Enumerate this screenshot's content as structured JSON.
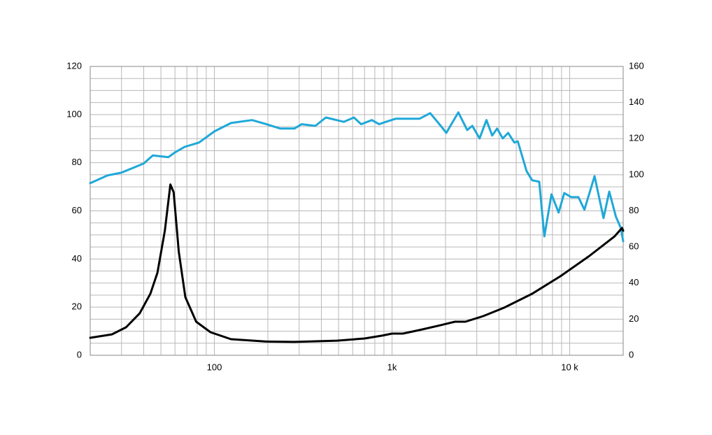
{
  "chart_data": {
    "type": "line",
    "log_x": true,
    "grid": true,
    "xlim": [
      20,
      20000
    ],
    "ylim": [
      0,
      120
    ],
    "y2lim": [
      0,
      160
    ],
    "xticks": [
      100,
      {
        "value": 1000,
        "label": "1k"
      },
      {
        "value": 10000,
        "label": "10 k"
      }
    ],
    "yticks": [
      0,
      20,
      40,
      60,
      80,
      100,
      120
    ],
    "y2ticks": [
      0,
      20,
      40,
      60,
      80,
      100,
      120,
      140,
      160
    ],
    "xgrid": [
      20,
      30,
      40,
      50,
      60,
      70,
      80,
      90,
      100,
      200,
      300,
      400,
      500,
      600,
      700,
      800,
      900,
      1000,
      2000,
      3000,
      4000,
      5000,
      6000,
      7000,
      8000,
      9000,
      10000,
      20000
    ],
    "ygrid": [
      0,
      5,
      10,
      15,
      20,
      25,
      30,
      35,
      40,
      45,
      50,
      55,
      60,
      65,
      70,
      75,
      80,
      85,
      90,
      95,
      100,
      105,
      110,
      115,
      120
    ],
    "series": [
      {
        "color": "#1fa8d8",
        "x": [
          20,
          25,
          30,
          35,
          40,
          45,
          55,
          60,
          68,
          82,
          100,
          124,
          163,
          196,
          235,
          282,
          310,
          370,
          424,
          535,
          610,
          670,
          770,
          845,
          925,
          1050,
          1200,
          1430,
          1640,
          1880,
          2020,
          2360,
          2650,
          2830,
          3110,
          3400,
          3660,
          3900,
          4200,
          4500,
          4880,
          5100,
          5720,
          6150,
          6740,
          7200,
          7900,
          8660,
          9320,
          10200,
          11200,
          12100,
          13800,
          15500,
          16700,
          18200,
          19400,
          20000
        ],
        "values": [
          71.5,
          74.7,
          75.9,
          77.9,
          79.7,
          83,
          82.3,
          84.3,
          86.6,
          88.4,
          93,
          96.5,
          97.7,
          96,
          94.2,
          94.2,
          96,
          95.3,
          98.8,
          97,
          98.8,
          96,
          97.7,
          96,
          97,
          98.3,
          98.3,
          98.3,
          100.6,
          95.3,
          92.4,
          100.9,
          93.6,
          95.3,
          90.1,
          97.7,
          91.3,
          94.2,
          90.1,
          92.4,
          88.4,
          88.9,
          76.5,
          72.7,
          72.1,
          49.4,
          66.9,
          59.3,
          67.4,
          65.7,
          65.7,
          60.5,
          74.4,
          57,
          68,
          57.6,
          52.9,
          47.4
        ]
      },
      {
        "color": "#000000",
        "axis": "y2",
        "x": [
          20,
          26.5,
          31.8,
          38,
          43.6,
          47.8,
          52.6,
          56.5,
          59,
          63,
          68.6,
          79,
          95,
          124,
          196,
          282,
          490,
          700,
          880,
          1000,
          1150,
          1430,
          1880,
          2260,
          2590,
          3260,
          4280,
          6150,
          8880,
          12900,
          17900,
          19700,
          20000
        ],
        "values": [
          9.7,
          11.6,
          15.5,
          23.3,
          34.1,
          45.7,
          69,
          94.6,
          90.3,
          57.4,
          32.2,
          18.6,
          12.8,
          8.9,
          7.6,
          7.4,
          8.1,
          9.3,
          10.9,
          12,
          12,
          14,
          16.7,
          18.6,
          18.6,
          21.7,
          26.4,
          34.1,
          43.8,
          55,
          65.9,
          70.5,
          69
        ]
      }
    ]
  }
}
